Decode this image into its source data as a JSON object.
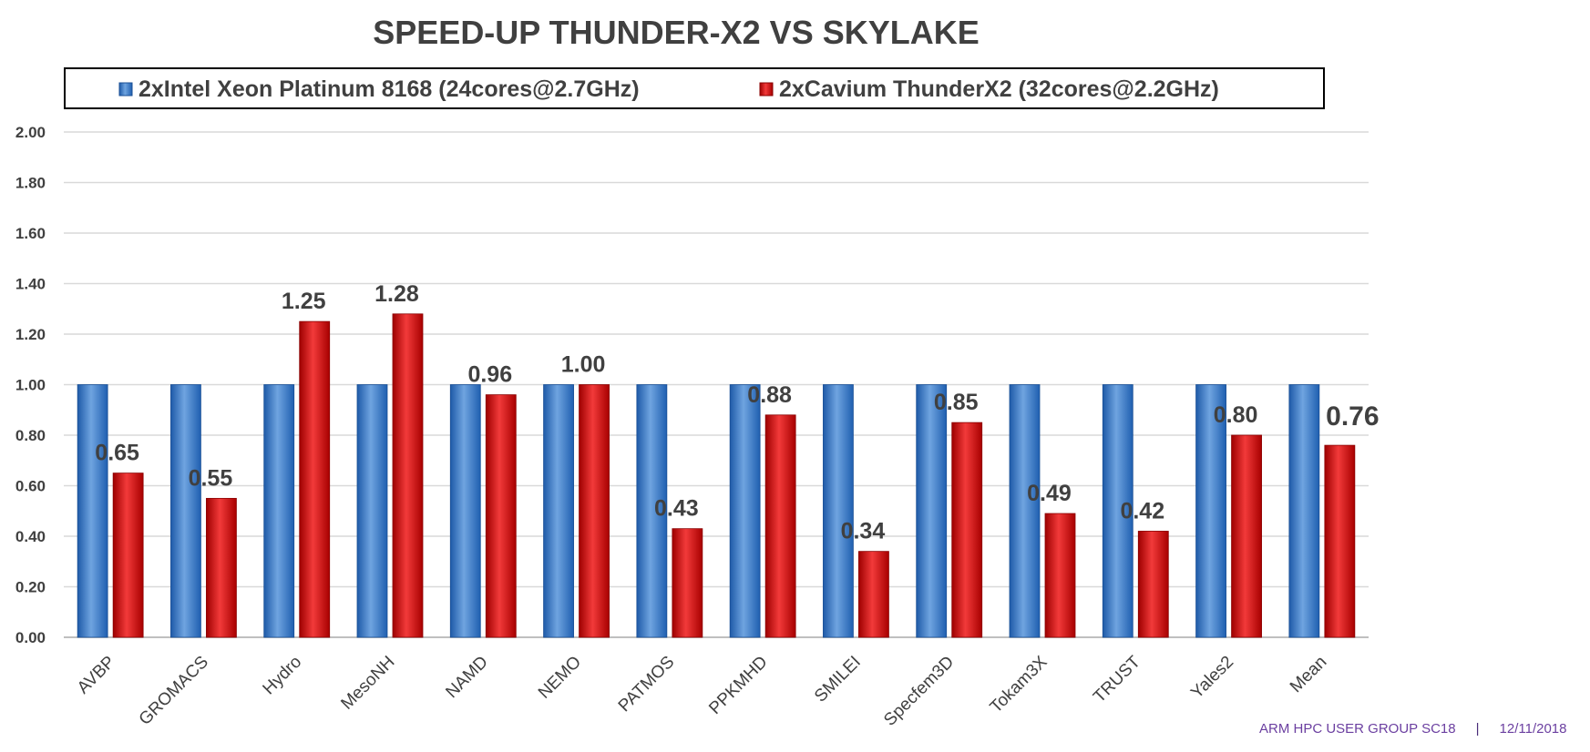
{
  "chart_data": {
    "type": "bar",
    "title": "SPEED-UP THUNDER-X2 VS SKYLAKE",
    "categories": [
      "AVBP",
      "GROMACS",
      "Hydro",
      "MesoNH",
      "NAMD",
      "NEMO",
      "PATMOS",
      "PPKMHD",
      "SMILEI",
      "Specfem3D",
      "Tokam3X",
      "TRUST",
      "Yales2",
      "Mean"
    ],
    "series": [
      {
        "name": "2xIntel Xeon Platinum 8168 (24cores@2.7GHz)",
        "color": "#2e75c6",
        "values": [
          1,
          1,
          1,
          1,
          1,
          1,
          1,
          1,
          1,
          1,
          1,
          1,
          1,
          1
        ]
      },
      {
        "name": "2xCavium ThunderX2 (32cores@2.2GHz)",
        "color": "#d40000",
        "values": [
          0.65,
          0.55,
          1.25,
          1.28,
          0.96,
          1.0,
          0.43,
          0.88,
          0.34,
          0.85,
          0.49,
          0.42,
          0.8,
          0.76
        ],
        "labels": [
          "0.65",
          "0.55",
          "1.25",
          "1.28",
          "0.96",
          "1.00",
          "0.43",
          "0.88",
          "0.34",
          "0.85",
          "0.49",
          "0.42",
          "0.80",
          "0.76"
        ]
      }
    ],
    "y_ticks": [
      "0.00",
      "0.20",
      "0.40",
      "0.60",
      "0.80",
      "1.00",
      "1.20",
      "1.40",
      "1.60",
      "1.80",
      "2.00"
    ],
    "ylim": [
      0,
      2
    ],
    "xlabel": "",
    "ylabel": "",
    "grid": true,
    "legend_position": "top"
  },
  "footer": {
    "event": "ARM HPC USER GROUP SC18",
    "separator": "|",
    "date": "12/11/2018"
  }
}
